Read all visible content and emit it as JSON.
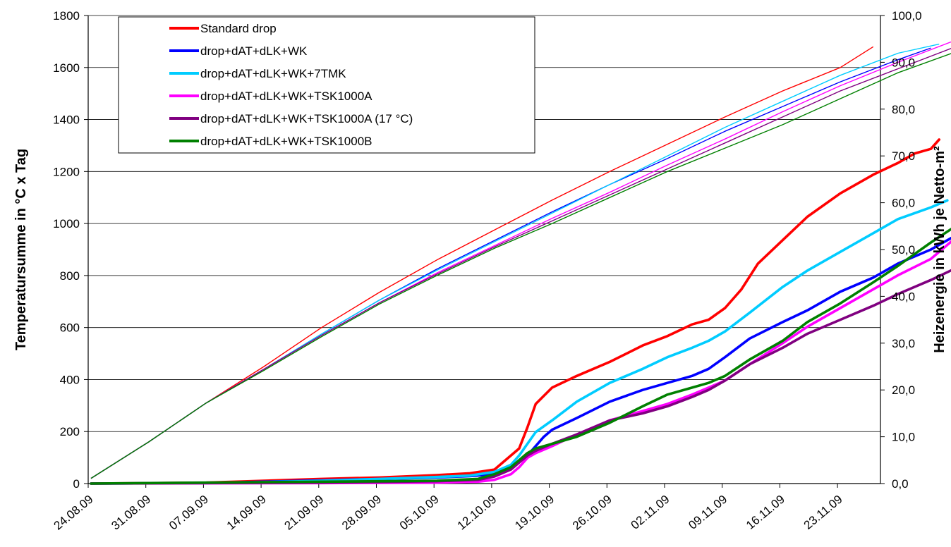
{
  "chart_data": {
    "type": "line",
    "x_tick_labels": [
      "24.08.09",
      "31.08.09",
      "07.09.09",
      "14.09.09",
      "21.09.09",
      "28.09.09",
      "05.10.09",
      "12.10.09",
      "19.10.09",
      "26.10.09",
      "02.11.09",
      "09.11.09",
      "16.11.09",
      "23.11.09"
    ],
    "xlabel": "",
    "ylabel_left": "Temperatursumme in °C x Tag",
    "ylabel_right": "Heizenergie in kWh je Netto-m²",
    "ylim_left": [
      0,
      1800
    ],
    "ylim_right": [
      0,
      100
    ],
    "yticks_left": [
      "0",
      "200",
      "400",
      "600",
      "800",
      "1000",
      "1200",
      "1400",
      "1600",
      "1800"
    ],
    "yticks_right": [
      "0,0",
      "10,0",
      "20,0",
      "30,0",
      "40,0",
      "50,0",
      "60,0",
      "70,0",
      "80,0",
      "90,0",
      "100,0"
    ],
    "grid": "horizontal",
    "legend_position": "top-left",
    "series": [
      {
        "name": "Standard drop",
        "color": "#ff0000",
        "temp_sum": [
          [
            0,
            20
          ],
          [
            7,
            160
          ],
          [
            14,
            310
          ],
          [
            21,
            450
          ],
          [
            28,
            600
          ],
          [
            35,
            735
          ],
          [
            42,
            860
          ],
          [
            49,
            975
          ],
          [
            56,
            1090
          ],
          [
            63,
            1200
          ],
          [
            70,
            1305
          ],
          [
            77,
            1410
          ],
          [
            84,
            1510
          ],
          [
            91,
            1600
          ],
          [
            95,
            1680
          ]
        ],
        "heating": [
          [
            0,
            0
          ],
          [
            14,
            0.2
          ],
          [
            21,
            0.6
          ],
          [
            28,
            1.0
          ],
          [
            35,
            1.3
          ],
          [
            42,
            1.8
          ],
          [
            46,
            2.2
          ],
          [
            49,
            3.0
          ],
          [
            50,
            4.5
          ],
          [
            52,
            7.5
          ],
          [
            53,
            12.0
          ],
          [
            54,
            17.0
          ],
          [
            56,
            20.5
          ],
          [
            59,
            23.0
          ],
          [
            63,
            26.0
          ],
          [
            67,
            29.5
          ],
          [
            70,
            31.5
          ],
          [
            73,
            34.0
          ],
          [
            75,
            35.0
          ],
          [
            77,
            37.5
          ],
          [
            79,
            41.5
          ],
          [
            81,
            47.0
          ],
          [
            84,
            52.0
          ],
          [
            87,
            57.0
          ],
          [
            91,
            62.0
          ],
          [
            95,
            66.0
          ],
          [
            98,
            68.5
          ],
          [
            100,
            70.5
          ],
          [
            102,
            71.5
          ],
          [
            103,
            73.5
          ]
        ]
      },
      {
        "name": "drop+dAT+dLK+WK",
        "color": "#0000ff",
        "temp_sum": [
          [
            0,
            20
          ],
          [
            7,
            160
          ],
          [
            14,
            310
          ],
          [
            21,
            440
          ],
          [
            28,
            575
          ],
          [
            35,
            705
          ],
          [
            42,
            825
          ],
          [
            49,
            935
          ],
          [
            56,
            1045
          ],
          [
            63,
            1150
          ],
          [
            70,
            1250
          ],
          [
            77,
            1355
          ],
          [
            84,
            1450
          ],
          [
            91,
            1545
          ],
          [
            98,
            1630
          ],
          [
            102,
            1675
          ]
        ],
        "heating": [
          [
            0,
            0
          ],
          [
            14,
            0.1
          ],
          [
            21,
            0.4
          ],
          [
            28,
            0.7
          ],
          [
            35,
            1.0
          ],
          [
            42,
            1.3
          ],
          [
            46,
            1.6
          ],
          [
            49,
            2.0
          ],
          [
            51,
            3.5
          ],
          [
            53,
            6.0
          ],
          [
            55,
            10.0
          ],
          [
            56,
            11.5
          ],
          [
            59,
            14.0
          ],
          [
            63,
            17.5
          ],
          [
            67,
            20.0
          ],
          [
            70,
            21.5
          ],
          [
            73,
            23.0
          ],
          [
            75,
            24.5
          ],
          [
            77,
            27.0
          ],
          [
            80,
            31.0
          ],
          [
            84,
            34.5
          ],
          [
            87,
            37.0
          ],
          [
            91,
            41.0
          ],
          [
            95,
            44.0
          ],
          [
            98,
            47.0
          ],
          [
            102,
            50.0
          ],
          [
            105,
            53.0
          ],
          [
            106,
            54.5
          ]
        ]
      },
      {
        "name": "drop+dAT+dLK+WK+7TMK",
        "color": "#00ccff",
        "temp_sum": [
          [
            0,
            20
          ],
          [
            7,
            160
          ],
          [
            14,
            310
          ],
          [
            21,
            440
          ],
          [
            28,
            575
          ],
          [
            35,
            705
          ],
          [
            42,
            820
          ],
          [
            49,
            930
          ],
          [
            56,
            1040
          ],
          [
            63,
            1150
          ],
          [
            70,
            1260
          ],
          [
            77,
            1370
          ],
          [
            84,
            1470
          ],
          [
            91,
            1570
          ],
          [
            98,
            1655
          ],
          [
            103,
            1690
          ]
        ],
        "heating": [
          [
            0,
            0
          ],
          [
            14,
            0.1
          ],
          [
            21,
            0.3
          ],
          [
            28,
            0.6
          ],
          [
            35,
            1.0
          ],
          [
            42,
            1.4
          ],
          [
            46,
            1.7
          ],
          [
            49,
            2.5
          ],
          [
            51,
            4.0
          ],
          [
            52,
            6.0
          ],
          [
            54,
            11.0
          ],
          [
            56,
            13.5
          ],
          [
            59,
            17.5
          ],
          [
            63,
            21.5
          ],
          [
            67,
            24.5
          ],
          [
            70,
            27.0
          ],
          [
            73,
            29.0
          ],
          [
            75,
            30.5
          ],
          [
            77,
            32.5
          ],
          [
            80,
            36.5
          ],
          [
            84,
            42.0
          ],
          [
            87,
            45.5
          ],
          [
            91,
            49.5
          ],
          [
            95,
            53.5
          ],
          [
            98,
            56.5
          ],
          [
            102,
            59.0
          ],
          [
            104,
            60.5
          ]
        ]
      },
      {
        "name": "drop+dAT+dLK+WK+TSK1000A",
        "color": "#ff00ff",
        "temp_sum": [
          [
            0,
            20
          ],
          [
            7,
            160
          ],
          [
            14,
            310
          ],
          [
            21,
            440
          ],
          [
            28,
            570
          ],
          [
            35,
            695
          ],
          [
            42,
            810
          ],
          [
            49,
            915
          ],
          [
            56,
            1020
          ],
          [
            63,
            1120
          ],
          [
            70,
            1225
          ],
          [
            77,
            1325
          ],
          [
            84,
            1430
          ],
          [
            91,
            1530
          ],
          [
            98,
            1620
          ],
          [
            105,
            1705
          ]
        ],
        "heating": [
          [
            0,
            0
          ],
          [
            28,
            0.1
          ],
          [
            42,
            0.2
          ],
          [
            47,
            0.4
          ],
          [
            49,
            0.8
          ],
          [
            51,
            2.0
          ],
          [
            52,
            3.5
          ],
          [
            53,
            5.5
          ],
          [
            54,
            6.5
          ],
          [
            56,
            8.0
          ],
          [
            59,
            10.5
          ],
          [
            63,
            13.5
          ],
          [
            67,
            15.5
          ],
          [
            70,
            17.0
          ],
          [
            73,
            19.0
          ],
          [
            75,
            20.5
          ],
          [
            77,
            22.0
          ],
          [
            80,
            25.5
          ],
          [
            84,
            30.0
          ],
          [
            87,
            33.5
          ],
          [
            91,
            37.5
          ],
          [
            95,
            41.5
          ],
          [
            98,
            44.5
          ],
          [
            102,
            48.0
          ],
          [
            105,
            52.5
          ]
        ]
      },
      {
        "name": "drop+dAT+dLK+WK+TSK1000A (17 °C)",
        "color": "#800080",
        "temp_sum": [
          [
            0,
            20
          ],
          [
            7,
            160
          ],
          [
            14,
            310
          ],
          [
            21,
            440
          ],
          [
            28,
            570
          ],
          [
            35,
            695
          ],
          [
            42,
            805
          ],
          [
            49,
            910
          ],
          [
            56,
            1010
          ],
          [
            63,
            1110
          ],
          [
            70,
            1210
          ],
          [
            77,
            1310
          ],
          [
            84,
            1410
          ],
          [
            91,
            1510
          ],
          [
            98,
            1595
          ],
          [
            105,
            1680
          ]
        ],
        "heating": [
          [
            0,
            0
          ],
          [
            28,
            0.2
          ],
          [
            42,
            0.5
          ],
          [
            47,
            0.8
          ],
          [
            49,
            1.5
          ],
          [
            51,
            3.0
          ],
          [
            52,
            4.5
          ],
          [
            53,
            6.0
          ],
          [
            54,
            7.0
          ],
          [
            56,
            8.5
          ],
          [
            59,
            10.5
          ],
          [
            63,
            13.5
          ],
          [
            67,
            15.0
          ],
          [
            70,
            16.5
          ],
          [
            73,
            18.5
          ],
          [
            75,
            20.0
          ],
          [
            77,
            22.0
          ],
          [
            80,
            25.5
          ],
          [
            84,
            29.0
          ],
          [
            87,
            32.0
          ],
          [
            91,
            35.0
          ],
          [
            95,
            38.0
          ],
          [
            98,
            40.5
          ],
          [
            102,
            43.5
          ],
          [
            105,
            46.0
          ]
        ]
      },
      {
        "name": "drop+dAT+dLK+WK+TSK1000B",
        "color": "#008000",
        "temp_sum": [
          [
            0,
            20
          ],
          [
            7,
            160
          ],
          [
            14,
            310
          ],
          [
            21,
            435
          ],
          [
            28,
            565
          ],
          [
            35,
            690
          ],
          [
            42,
            800
          ],
          [
            49,
            905
          ],
          [
            56,
            1000
          ],
          [
            63,
            1100
          ],
          [
            70,
            1200
          ],
          [
            77,
            1290
          ],
          [
            84,
            1380
          ],
          [
            91,
            1480
          ],
          [
            98,
            1580
          ],
          [
            105,
            1660
          ],
          [
            107,
            1690
          ]
        ],
        "heating": [
          [
            0,
            0
          ],
          [
            21,
            0.3
          ],
          [
            35,
            0.5
          ],
          [
            42,
            0.6
          ],
          [
            47,
            1.0
          ],
          [
            49,
            2.0
          ],
          [
            51,
            3.5
          ],
          [
            52,
            5.0
          ],
          [
            53,
            6.5
          ],
          [
            54,
            7.5
          ],
          [
            56,
            8.5
          ],
          [
            59,
            10.0
          ],
          [
            63,
            13.0
          ],
          [
            67,
            16.5
          ],
          [
            70,
            19.0
          ],
          [
            73,
            20.5
          ],
          [
            75,
            21.5
          ],
          [
            77,
            23.0
          ],
          [
            80,
            26.5
          ],
          [
            84,
            30.5
          ],
          [
            87,
            34.5
          ],
          [
            91,
            38.5
          ],
          [
            95,
            43.0
          ],
          [
            98,
            46.5
          ],
          [
            102,
            51.5
          ],
          [
            105,
            55.0
          ],
          [
            107,
            57.0
          ]
        ]
      }
    ]
  }
}
